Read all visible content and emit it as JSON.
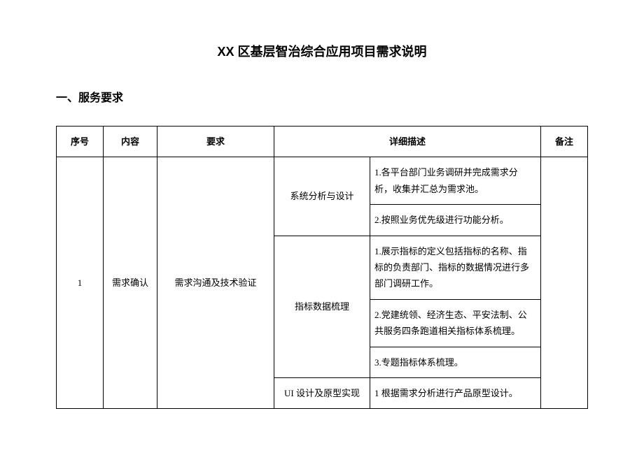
{
  "title": "XX 区基层智治综合应用项目需求说明",
  "sectionHeader": "一、服务要求",
  "headers": {
    "seq": "序号",
    "content": "内容",
    "requirement": "要求",
    "detail": "详细描述",
    "remark": "备注"
  },
  "row1": {
    "seq": "1",
    "content": "需求确认",
    "requirement": "需求沟通及技术验证",
    "sub1": "系统分析与设计",
    "sub1_d1": "1.各平台部门业务调研并完成需求分析，收集并汇总为需求池。",
    "sub1_d2": "2.按照业务优先级进行功能分析。",
    "sub2": "指标数据梳理",
    "sub2_d1": "1.展示指标的定义包括指标的名称、指标的负责部门、指标的数据情况进行多部门调研工作。",
    "sub2_d2": "2.党建统领、经济生态、平安法制、公共服务四条跑道相关指标体系梳理。",
    "sub2_d3": "3.专题指标体系梳理。",
    "sub3": "UI 设计及原型实现",
    "sub3_d1": "1 根据需求分析进行产品原型设计。"
  }
}
